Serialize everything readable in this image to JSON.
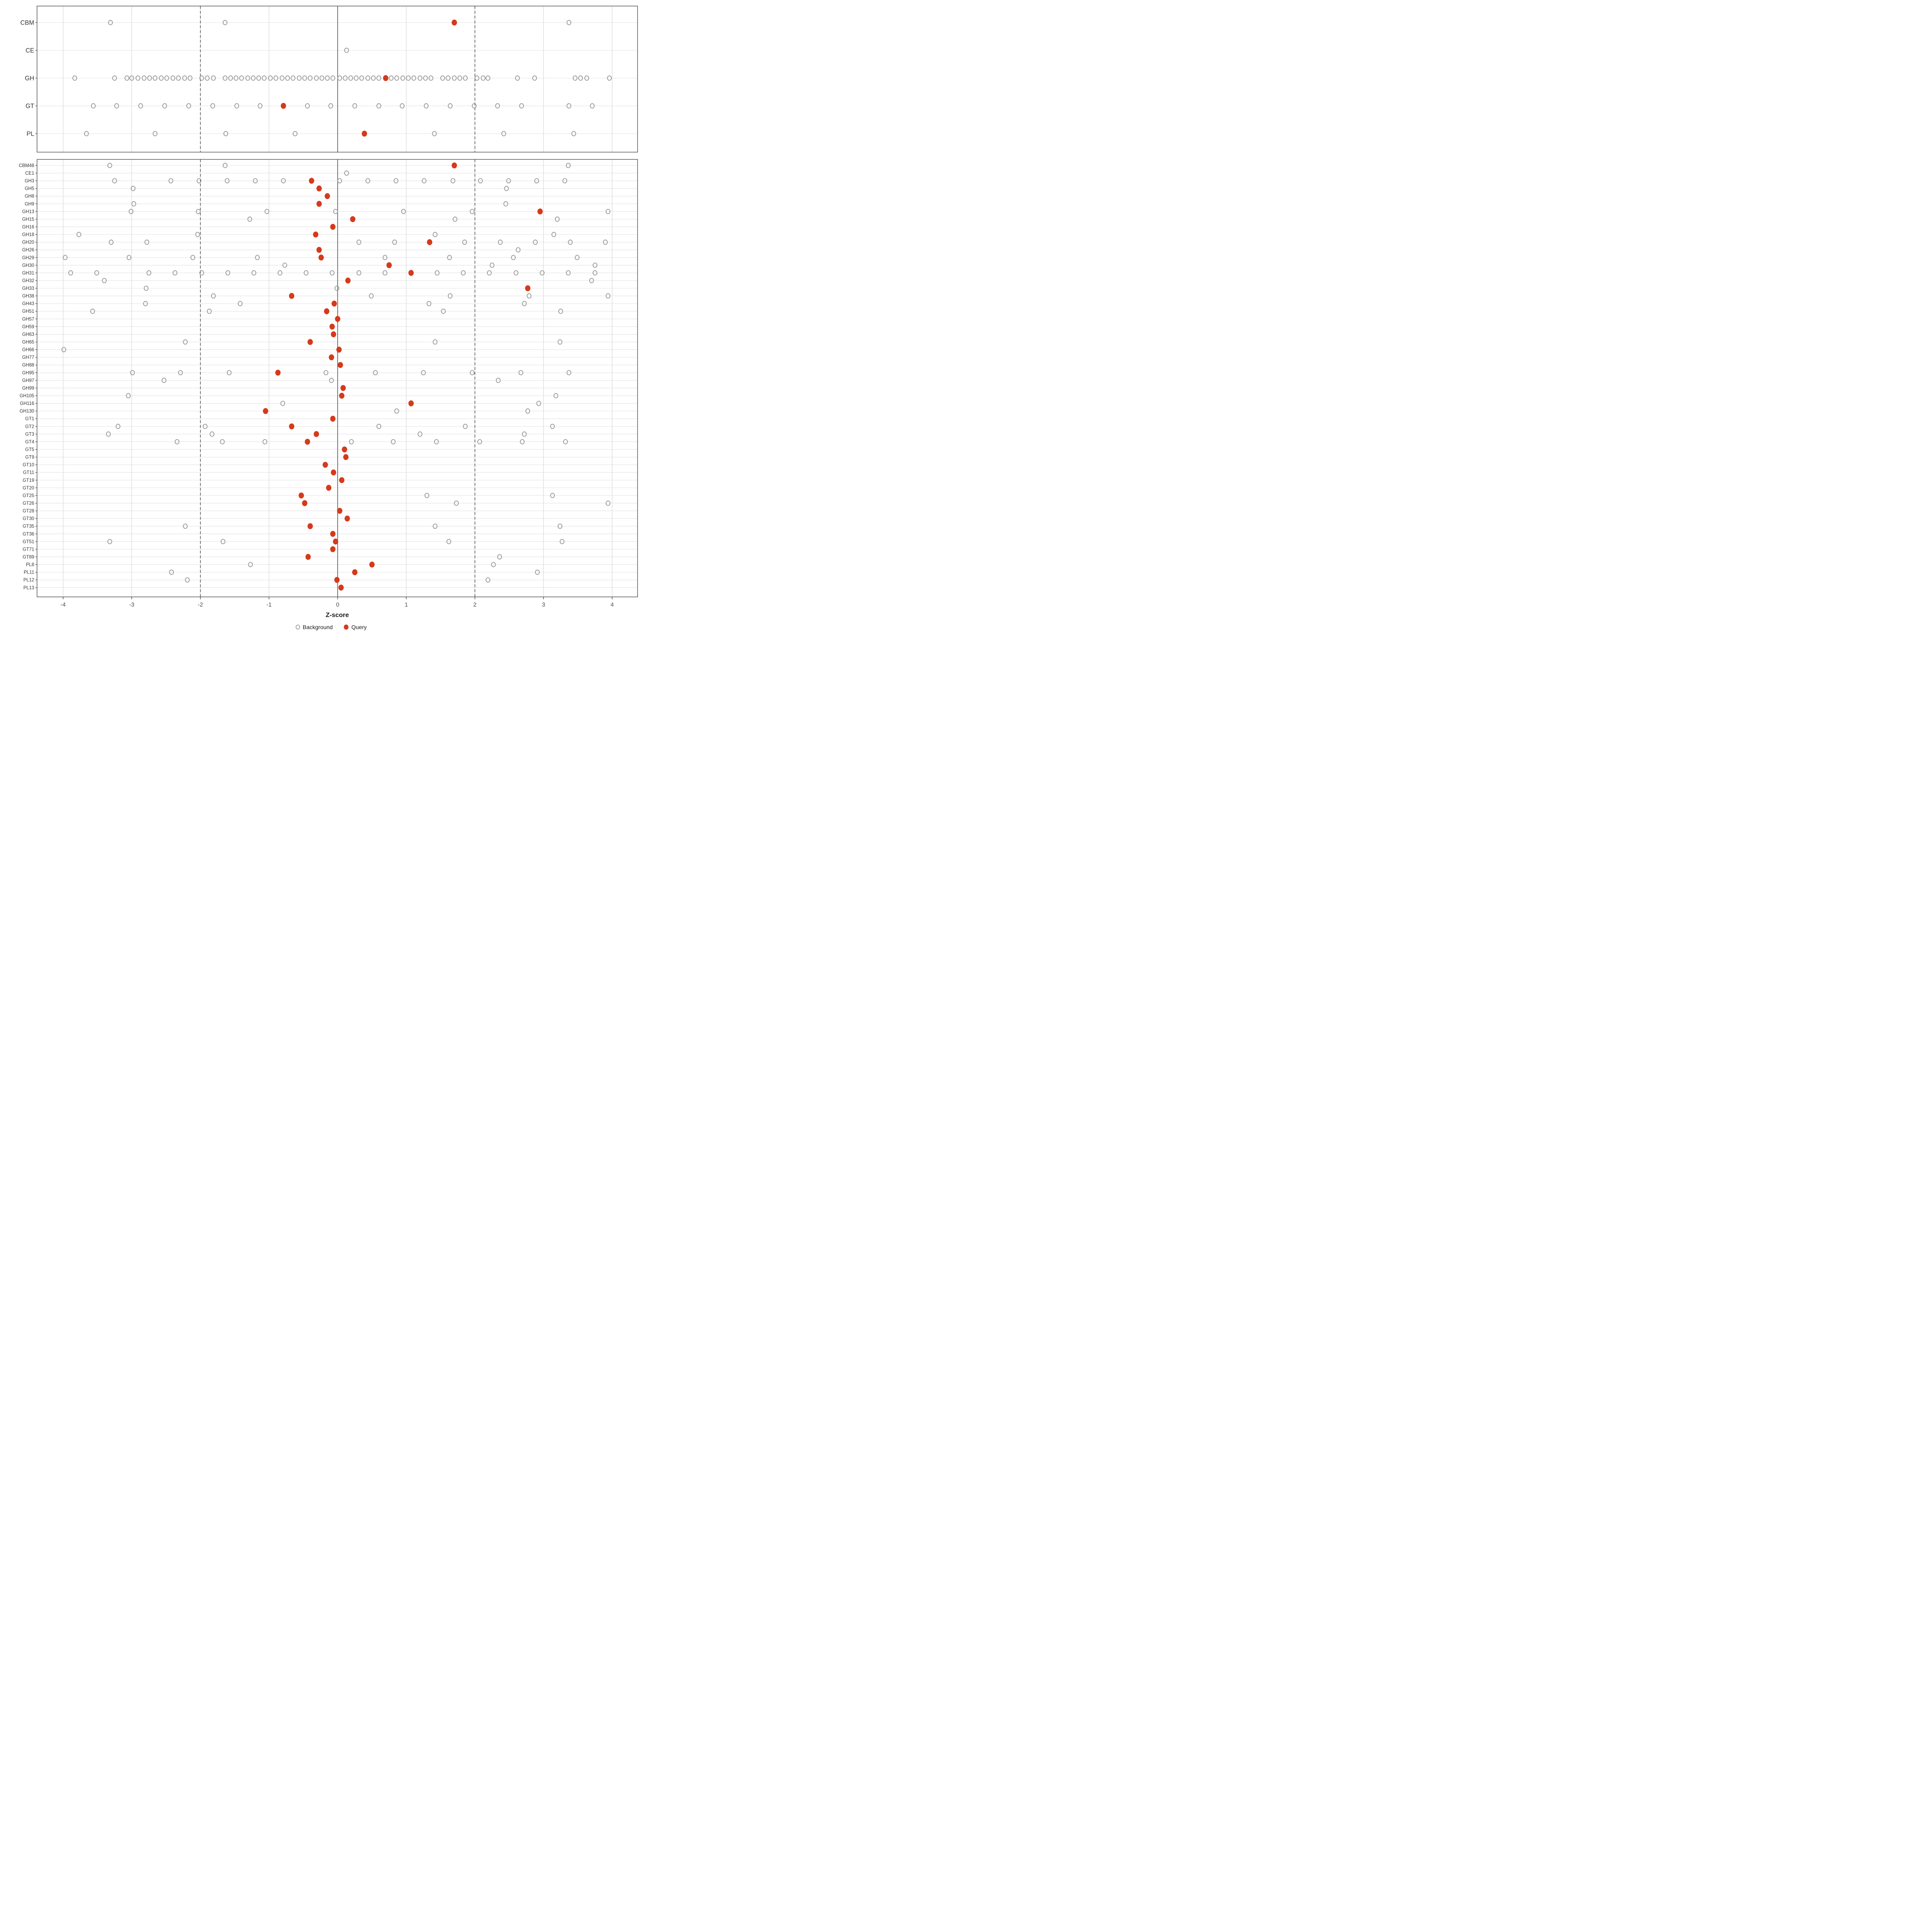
{
  "chart_data": {
    "type": "scatter",
    "title": "",
    "xlabel": "Z-score",
    "x_ticks": [
      -4,
      -3,
      -2,
      -1,
      0,
      1,
      2,
      3,
      4
    ],
    "xlim": [
      -4.38,
      4.37
    ],
    "grid": "on",
    "reference_lines": {
      "solid_at": 0,
      "dashed_at": [
        -2,
        2
      ]
    },
    "legend": {
      "position": "bottom-center",
      "entries": [
        {
          "label": "Background",
          "marker": "open-circle",
          "color": "#969696"
        },
        {
          "label": "Query",
          "marker": "filled-circle",
          "color": "#D6391B"
        }
      ]
    },
    "colors": {
      "query": "#D6391B",
      "background_stroke": "#969696",
      "grid_line": "#E2E2E2",
      "vgrid_line": "#D8D8D8",
      "ref_line": "#4D4D4D",
      "panel_border": "#404040",
      "tick_text": "#4D4D4D",
      "label_text": "#333333"
    },
    "panels": [
      {
        "name": "class-summary",
        "rows": [
          {
            "label": "CBM",
            "background": [
              -3.31,
              -1.64,
              3.37
            ],
            "query": 1.7
          },
          {
            "label": "CE",
            "background": [
              0.13
            ],
            "query": null
          },
          {
            "label": "GH",
            "background": [
              -3.83,
              -3.25,
              -3.07,
              -3.0,
              -2.91,
              -2.82,
              -2.74,
              -2.66,
              -2.57,
              -2.49,
              -2.4,
              -2.32,
              -2.23,
              -2.15,
              -1.98,
              -1.9,
              -1.81,
              -1.64,
              -1.56,
              -1.48,
              -1.4,
              -1.31,
              -1.23,
              -1.15,
              -1.07,
              -0.98,
              -0.9,
              -0.81,
              -0.73,
              -0.65,
              -0.56,
              -0.48,
              -0.4,
              -0.31,
              -0.23,
              -0.15,
              -0.07,
              0.03,
              0.11,
              0.19,
              0.27,
              0.35,
              0.44,
              0.52,
              0.6,
              0.78,
              0.86,
              0.95,
              1.03,
              1.11,
              1.2,
              1.28,
              1.36,
              1.53,
              1.61,
              1.7,
              1.78,
              1.86,
              2.03,
              2.12,
              2.19,
              2.62,
              2.87,
              3.46,
              3.54,
              3.63,
              3.96
            ],
            "query": 0.7
          },
          {
            "label": "GT",
            "background": [
              -3.56,
              -3.22,
              -2.87,
              -2.52,
              -2.17,
              -1.82,
              -1.47,
              -1.13,
              -0.44,
              -0.1,
              0.25,
              0.6,
              0.94,
              1.29,
              1.64,
              1.99,
              2.33,
              2.68,
              3.37,
              3.71
            ],
            "query": -0.79
          },
          {
            "label": "PL",
            "background": [
              -3.66,
              -2.66,
              -1.63,
              -0.62,
              1.41,
              2.42,
              3.44
            ],
            "query": 0.39
          }
        ]
      },
      {
        "name": "family-detail",
        "rows": [
          {
            "label": "CBM48",
            "background": [
              -3.32,
              -1.64,
              3.36
            ],
            "query": 1.7
          },
          {
            "label": "CE1",
            "background": [
              0.13
            ],
            "query": null
          },
          {
            "label": "GH3",
            "background": [
              -3.25,
              -2.43,
              -2.02,
              -1.61,
              -1.2,
              -0.79,
              0.03,
              0.44,
              0.85,
              1.26,
              1.68,
              2.08,
              2.49,
              2.9,
              3.31
            ],
            "query": -0.38
          },
          {
            "label": "GH5",
            "background": [
              -2.98,
              2.46
            ],
            "query": -0.27
          },
          {
            "label": "GH8",
            "background": [],
            "query": -0.15
          },
          {
            "label": "GH9",
            "background": [
              -2.97,
              2.45
            ],
            "query": -0.27
          },
          {
            "label": "GH13",
            "background": [
              -3.01,
              -2.03,
              -1.03,
              -0.03,
              0.96,
              1.96,
              3.94
            ],
            "query": 2.95
          },
          {
            "label": "GH15",
            "background": [
              -1.28,
              1.71,
              3.2
            ],
            "query": 0.22
          },
          {
            "label": "GH16",
            "background": [],
            "query": -0.07
          },
          {
            "label": "GH18",
            "background": [
              -3.77,
              -2.04,
              1.42,
              3.15
            ],
            "query": -0.32
          },
          {
            "label": "GH20",
            "background": [
              -3.3,
              -2.78,
              0.31,
              0.83,
              1.85,
              2.37,
              2.88,
              3.39,
              3.9
            ],
            "query": 1.34
          },
          {
            "label": "GH26",
            "background": [
              2.63
            ],
            "query": -0.27
          },
          {
            "label": "GH29",
            "background": [
              -3.97,
              -3.04,
              -2.11,
              -1.17,
              0.69,
              1.63,
              2.56,
              3.49
            ],
            "query": -0.24
          },
          {
            "label": "GH30",
            "background": [
              -0.77,
              2.25,
              3.75
            ],
            "query": 0.75
          },
          {
            "label": "GH31",
            "background": [
              -3.89,
              -3.51,
              -2.75,
              -2.37,
              -1.98,
              -1.6,
              -1.22,
              -0.84,
              -0.46,
              -0.08,
              0.31,
              0.69,
              1.45,
              1.83,
              2.21,
              2.6,
              2.98,
              3.36,
              3.75
            ],
            "query": 1.07
          },
          {
            "label": "GH32",
            "background": [
              -3.4,
              3.7
            ],
            "query": 0.15
          },
          {
            "label": "GH33",
            "background": [
              -2.79,
              -0.01
            ],
            "query": 2.77
          },
          {
            "label": "GH38",
            "background": [
              -1.81,
              0.49,
              1.64,
              2.79,
              3.94
            ],
            "query": -0.67
          },
          {
            "label": "GH43",
            "background": [
              -2.8,
              -1.42,
              1.33,
              2.72
            ],
            "query": -0.05
          },
          {
            "label": "GH51",
            "background": [
              -3.57,
              -1.87,
              1.54,
              3.25
            ],
            "query": -0.16
          },
          {
            "label": "GH57",
            "background": [],
            "query": 0.0
          },
          {
            "label": "GH59",
            "background": [],
            "query": -0.08
          },
          {
            "label": "GH63",
            "background": [],
            "query": -0.06
          },
          {
            "label": "GH65",
            "background": [
              -2.22,
              1.42,
              3.24
            ],
            "query": -0.4
          },
          {
            "label": "GH66",
            "background": [
              -3.99
            ],
            "query": 0.02
          },
          {
            "label": "GH77",
            "background": [],
            "query": -0.09
          },
          {
            "label": "GH88",
            "background": [],
            "query": 0.04
          },
          {
            "label": "GH95",
            "background": [
              -2.99,
              -2.29,
              -1.58,
              -0.17,
              0.55,
              1.25,
              1.96,
              2.67,
              3.37
            ],
            "query": -0.87
          },
          {
            "label": "GH97",
            "background": [
              -2.53,
              -0.09,
              2.34
            ],
            "query": null
          },
          {
            "label": "GH99",
            "background": [],
            "query": 0.08
          },
          {
            "label": "GH105",
            "background": [
              -3.05,
              3.18
            ],
            "query": 0.06
          },
          {
            "label": "GH116",
            "background": [
              -0.8,
              2.93
            ],
            "query": 1.07
          },
          {
            "label": "GH130",
            "background": [
              0.86,
              2.77
            ],
            "query": -1.05
          },
          {
            "label": "GT1",
            "background": [],
            "query": -0.07
          },
          {
            "label": "GT2",
            "background": [
              -3.2,
              -1.93,
              0.6,
              1.86,
              3.13
            ],
            "query": -0.67
          },
          {
            "label": "GT3",
            "background": [
              -3.34,
              -1.83,
              1.2,
              2.72
            ],
            "query": -0.31
          },
          {
            "label": "GT4",
            "background": [
              -2.34,
              -1.68,
              -1.06,
              0.2,
              0.81,
              1.44,
              2.07,
              2.69,
              3.32
            ],
            "query": -0.44
          },
          {
            "label": "GT5",
            "background": [],
            "query": 0.1
          },
          {
            "label": "GT9",
            "background": [],
            "query": 0.12
          },
          {
            "label": "GT10",
            "background": [],
            "query": -0.18
          },
          {
            "label": "GT11",
            "background": [],
            "query": -0.06
          },
          {
            "label": "GT19",
            "background": [],
            "query": 0.06
          },
          {
            "label": "GT20",
            "background": [],
            "query": -0.13
          },
          {
            "label": "GT25",
            "background": [
              1.3,
              3.13
            ],
            "query": -0.53
          },
          {
            "label": "GT26",
            "background": [
              1.73,
              3.94
            ],
            "query": -0.48
          },
          {
            "label": "GT28",
            "background": [],
            "query": 0.03
          },
          {
            "label": "GT30",
            "background": [],
            "query": 0.14
          },
          {
            "label": "GT35",
            "background": [
              -2.22,
              1.42,
              3.24
            ],
            "query": -0.4
          },
          {
            "label": "GT36",
            "background": [],
            "query": -0.07
          },
          {
            "label": "GT51",
            "background": [
              -3.32,
              -1.67,
              1.62,
              3.27
            ],
            "query": -0.03
          },
          {
            "label": "GT71",
            "background": [],
            "query": -0.07
          },
          {
            "label": "GT89",
            "background": [
              2.36
            ],
            "query": -0.43
          },
          {
            "label": "PL8",
            "background": [
              -1.27,
              2.27
            ],
            "query": 0.5
          },
          {
            "label": "PL11",
            "background": [
              -2.42,
              2.91
            ],
            "query": 0.25
          },
          {
            "label": "PL12",
            "background": [
              -2.19,
              2.19
            ],
            "query": -0.01
          },
          {
            "label": "PL13",
            "background": [],
            "query": 0.05
          }
        ]
      }
    ]
  }
}
